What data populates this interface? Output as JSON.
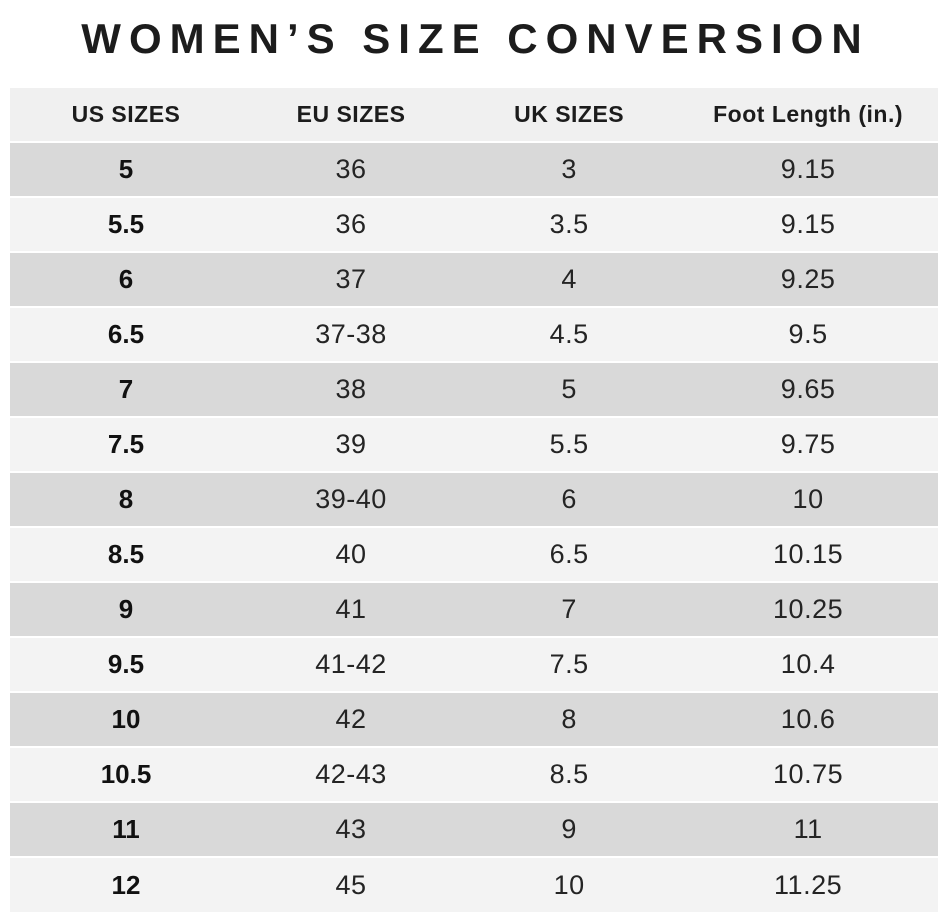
{
  "chart_data": {
    "type": "table",
    "title": "WOMEN’S SIZE CONVERSION",
    "columns": [
      "US SIZES",
      "EU SIZES",
      "UK SIZES",
      "Foot Length (in.)"
    ],
    "rows": [
      [
        "5",
        "36",
        "3",
        "9.15"
      ],
      [
        "5.5",
        "36",
        "3.5",
        "9.15"
      ],
      [
        "6",
        "37",
        "4",
        "9.25"
      ],
      [
        "6.5",
        "37-38",
        "4.5",
        "9.5"
      ],
      [
        "7",
        "38",
        "5",
        "9.65"
      ],
      [
        "7.5",
        "39",
        "5.5",
        "9.75"
      ],
      [
        "8",
        "39-40",
        "6",
        "10"
      ],
      [
        "8.5",
        "40",
        "6.5",
        "10.15"
      ],
      [
        "9",
        "41",
        "7",
        "10.25"
      ],
      [
        "9.5",
        "41-42",
        "7.5",
        "10.4"
      ],
      [
        "10",
        "42",
        "8",
        "10.6"
      ],
      [
        "10.5",
        "42-43",
        "8.5",
        "10.75"
      ],
      [
        "11",
        "43",
        "9",
        "11"
      ],
      [
        "12",
        "45",
        "10",
        "11.25"
      ]
    ],
    "layout": {
      "stripe_order": "first-data-row-dark",
      "grid": "horizontal-stripes-only",
      "legend": "none"
    }
  },
  "colors": {
    "page_bg": "#ffffff",
    "header_bg": "#f0f0f0",
    "row_dark": "#d9d9d9",
    "row_light": "#f3f3f3",
    "text": "#1c1c1c"
  }
}
